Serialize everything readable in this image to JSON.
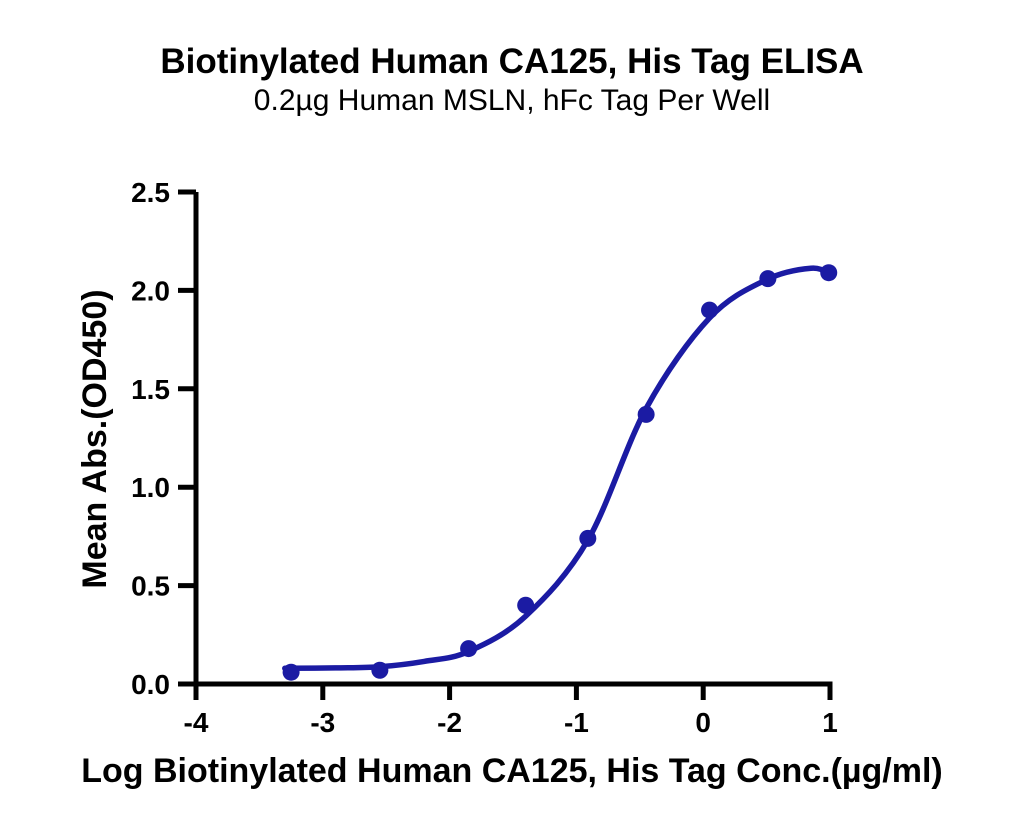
{
  "chart_data": {
    "type": "scatter",
    "title": "Biotinylated Human CA125, His Tag ELISA",
    "subtitle": "0.2µg Human MSLN, hFc Tag Per Well",
    "xlabel": "Log Biotinylated Human CA125, His Tag Conc.(µg/ml)",
    "ylabel": "Mean Abs.(OD450)",
    "xlim": [
      -4,
      1
    ],
    "ylim": [
      0,
      2.5
    ],
    "x_ticks": [
      -4,
      -3,
      -2,
      -1,
      0,
      1
    ],
    "x_tick_labels": [
      "-4",
      "-3",
      "-2",
      "-1",
      "0",
      "1"
    ],
    "y_ticks": [
      0,
      0.5,
      1,
      1.5,
      2,
      2.5
    ],
    "y_tick_labels": [
      "0.0",
      "0.5",
      "1.0",
      "1.5",
      "2.0",
      "2.5"
    ],
    "grid": false,
    "legend": "none",
    "series": [
      {
        "name": "Biotinylated Human CA125, His Tag",
        "marker": "circle",
        "color": "#1b1ba3",
        "points": [
          {
            "x": -3.25,
            "y": 0.06
          },
          {
            "x": -2.55,
            "y": 0.07
          },
          {
            "x": -1.85,
            "y": 0.18
          },
          {
            "x": -1.4,
            "y": 0.4
          },
          {
            "x": -0.91,
            "y": 0.74
          },
          {
            "x": -0.45,
            "y": 1.37
          },
          {
            "x": 0.05,
            "y": 1.9
          },
          {
            "x": 0.51,
            "y": 2.06
          },
          {
            "x": 0.99,
            "y": 2.09
          }
        ]
      }
    ],
    "fit_curve": {
      "shape": "4PL sigmoid",
      "color": "#1b1ba3",
      "anchors": [
        [
          -3.3,
          0.08
        ],
        [
          -2.9,
          0.082
        ],
        [
          -2.55,
          0.088
        ],
        [
          -2.2,
          0.115
        ],
        [
          -1.85,
          0.165
        ],
        [
          -1.4,
          0.345
        ],
        [
          -0.91,
          0.73
        ],
        [
          -0.45,
          1.4
        ],
        [
          0.05,
          1.86
        ],
        [
          0.5,
          2.055
        ],
        [
          0.85,
          2.113
        ],
        [
          1.0,
          2.083
        ]
      ]
    },
    "colors": {
      "accent": "#1b1ba3",
      "axis": "#000000",
      "text": "#000000",
      "background": "#ffffff"
    }
  }
}
